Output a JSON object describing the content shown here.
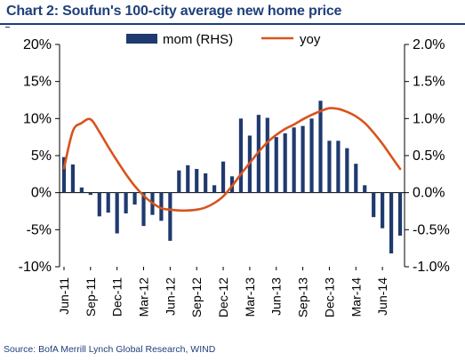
{
  "title": "Chart 2: Soufun's 100-city  average new home price",
  "source": "Source: BofA Merrill Lynch Global Research, WIND",
  "colors": {
    "bars": "#1f3a6e",
    "line": "#d9531c",
    "title": "#1f3f7a",
    "axis": "#000000"
  },
  "chart_data": {
    "type": "bar+line",
    "grid": false,
    "legend_position": "top-center",
    "x_ticks": [
      "Jun-11",
      "Sep-11",
      "Dec-11",
      "Mar-12",
      "Jun-12",
      "Sep-12",
      "Dec-12",
      "Mar-13",
      "Jun-13",
      "Sep-13",
      "Dec-13",
      "Mar-14",
      "Jun-14"
    ],
    "x_tick_month_index": [
      0,
      3,
      6,
      9,
      12,
      15,
      18,
      21,
      24,
      27,
      30,
      33,
      36
    ],
    "left_axis": {
      "ticks": [
        "20%",
        "15%",
        "10%",
        "5%",
        "0%",
        "-5%",
        "-10%"
      ],
      "ylim": [
        -10,
        20
      ]
    },
    "right_axis": {
      "ticks": [
        "2.0%",
        "1.5%",
        "1.0%",
        "0.5%",
        "0.0%",
        "-0.5%",
        "-1.0%"
      ],
      "ylim": [
        -1.0,
        2.0
      ]
    },
    "series": [
      {
        "name": "mom (RHS)",
        "kind": "bar",
        "axis": "right",
        "months": [
          "Jun-11",
          "Jul-11",
          "Aug-11",
          "Sep-11",
          "Oct-11",
          "Nov-11",
          "Dec-11",
          "Jan-12",
          "Feb-12",
          "Mar-12",
          "Apr-12",
          "May-12",
          "Jun-12",
          "Jul-12",
          "Aug-12",
          "Sep-12",
          "Oct-12",
          "Nov-12",
          "Dec-12",
          "Jan-13",
          "Feb-13",
          "Mar-13",
          "Apr-13",
          "May-13",
          "Jun-13",
          "Jul-13",
          "Aug-13",
          "Sep-13",
          "Oct-13",
          "Nov-13",
          "Dec-13",
          "Jan-14",
          "Feb-14",
          "Mar-14",
          "Apr-14",
          "May-14",
          "Jun-14",
          "Jul-14",
          "Aug-14"
        ],
        "values": [
          0.48,
          0.38,
          0.07,
          -0.03,
          -0.32,
          -0.27,
          -0.55,
          -0.28,
          -0.16,
          -0.45,
          -0.3,
          -0.38,
          -0.65,
          0.3,
          0.37,
          0.32,
          0.26,
          0.1,
          0.42,
          0.22,
          1.0,
          0.77,
          1.05,
          1.01,
          0.75,
          0.8,
          0.88,
          0.9,
          1.0,
          1.24,
          0.7,
          0.7,
          0.6,
          0.39,
          0.1,
          -0.33,
          -0.48,
          -0.82,
          -0.58
        ]
      },
      {
        "name": "yoy",
        "kind": "line",
        "axis": "left",
        "months": [
          "Jun-11",
          "Jul-11",
          "Aug-11",
          "Sep-11",
          "Oct-11",
          "Nov-11",
          "Dec-11",
          "Jan-12",
          "Feb-12",
          "Mar-12",
          "Apr-12",
          "May-12",
          "Jun-12",
          "Jul-12",
          "Aug-12",
          "Sep-12",
          "Oct-12",
          "Nov-12",
          "Dec-12",
          "Jan-13",
          "Feb-13",
          "Mar-13",
          "Apr-13",
          "May-13",
          "Jun-13",
          "Jul-13",
          "Aug-13",
          "Sep-13",
          "Oct-13",
          "Nov-13",
          "Dec-13",
          "Jan-14",
          "Feb-14",
          "Mar-14",
          "Apr-14",
          "May-14",
          "Jun-14",
          "Jul-14",
          "Aug-14"
        ],
        "values": [
          3.3,
          8.3,
          9.4,
          9.9,
          8.2,
          6.2,
          4.3,
          2.5,
          0.9,
          -0.4,
          -1.4,
          -2.1,
          -2.3,
          -2.4,
          -2.4,
          -2.3,
          -2.0,
          -1.4,
          -0.5,
          0.9,
          2.5,
          4.0,
          5.5,
          6.8,
          7.8,
          8.6,
          9.2,
          9.9,
          10.5,
          11.0,
          11.4,
          11.3,
          10.9,
          10.3,
          9.4,
          8.1,
          6.6,
          4.9,
          3.2
        ]
      }
    ]
  }
}
